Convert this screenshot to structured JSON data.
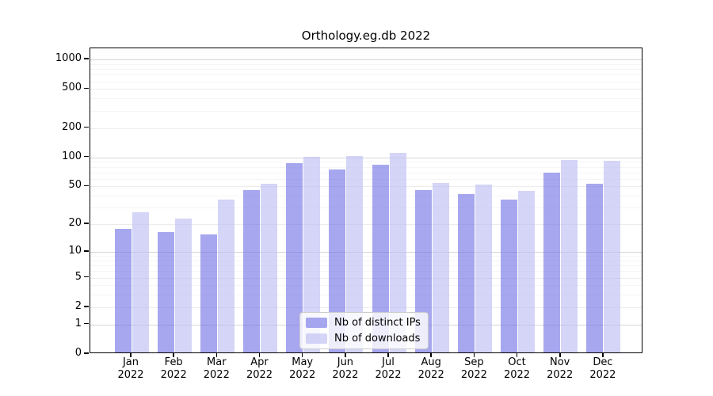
{
  "chart_data": {
    "type": "bar",
    "title": "Orthology.eg.db 2022",
    "scale": "log10(v+1)",
    "categories": [
      "Jan",
      "Feb",
      "Mar",
      "Apr",
      "May",
      "Jun",
      "Jul",
      "Aug",
      "Sep",
      "Oct",
      "Nov",
      "Dec"
    ],
    "year": "2022",
    "series": [
      {
        "name": "Nb of distinct IPs",
        "values": [
          17,
          16,
          15,
          44,
          84,
          72,
          81,
          44,
          40,
          35,
          67,
          51
        ]
      },
      {
        "name": "Nb of downloads",
        "values": [
          26,
          22,
          35,
          51,
          97,
          99,
          107,
          52,
          50,
          43,
          91,
          88
        ]
      }
    ],
    "colors": {
      "distinct_ips": "rgba(113,113,229,0.62)",
      "downloads": "rgba(190,190,243,0.65)"
    },
    "yticks": [
      0,
      1,
      2,
      5,
      10,
      20,
      50,
      100,
      200,
      500,
      1000
    ],
    "yticks_minor": [
      3,
      4,
      6,
      7,
      8,
      9,
      30,
      40,
      60,
      70,
      80,
      90,
      300,
      400,
      600,
      700,
      800,
      900
    ],
    "ylim": [
      0,
      1300
    ],
    "xlabel": "",
    "ylabel": "",
    "grid": true,
    "legend_position": "inside-bottom-center"
  }
}
